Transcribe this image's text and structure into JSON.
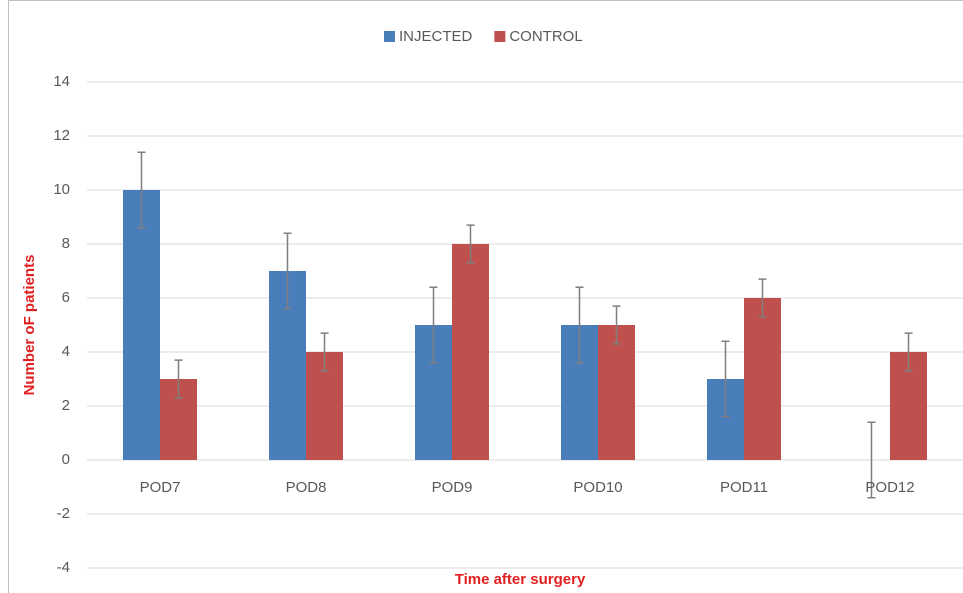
{
  "chart_data": {
    "type": "bar",
    "categories": [
      "POD7",
      "POD8",
      "POD9",
      "POD10",
      "POD11",
      "POD12"
    ],
    "series": [
      {
        "name": "INJECTED",
        "color": "#4a7ebb",
        "values": [
          10,
          7,
          5,
          5,
          3,
          0
        ],
        "errors": [
          1.4,
          1.4,
          1.4,
          1.4,
          1.4,
          1.4
        ]
      },
      {
        "name": "CONTROL",
        "color": "#c0504d",
        "values": [
          3,
          4,
          8,
          5,
          6,
          4
        ],
        "errors": [
          0.7,
          0.7,
          0.7,
          0.7,
          0.7,
          0.7
        ]
      }
    ],
    "ylabel": "Number oF patients",
    "xlabel": "Time after surgery",
    "ylim": [
      -4,
      14
    ],
    "yticks": [
      -4,
      -2,
      0,
      2,
      4,
      6,
      8,
      10,
      12,
      14
    ],
    "grid": true,
    "legend": "top"
  }
}
